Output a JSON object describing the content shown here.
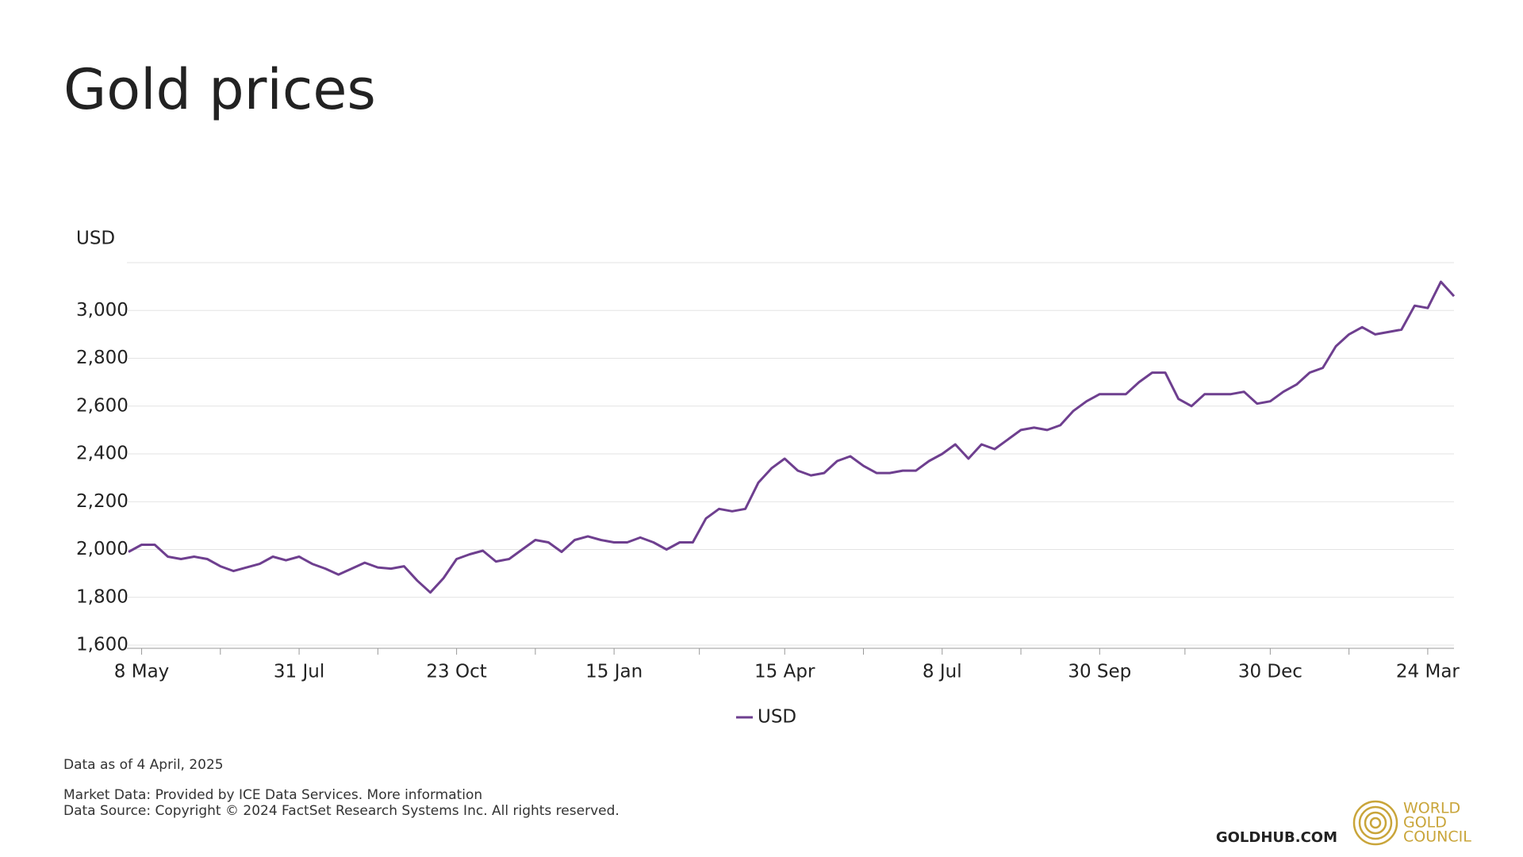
{
  "chart_data": {
    "type": "line",
    "title": "Gold prices",
    "y_label": "USD",
    "categories": [
      null,
      "8 May",
      null,
      null,
      null,
      null,
      null,
      null,
      null,
      null,
      null,
      null,
      null,
      "31 Jul",
      null,
      null,
      null,
      null,
      null,
      null,
      null,
      null,
      null,
      null,
      null,
      "23 Oct",
      null,
      null,
      null,
      null,
      null,
      null,
      null,
      null,
      null,
      null,
      null,
      "15 Jan",
      null,
      null,
      null,
      null,
      null,
      null,
      null,
      null,
      null,
      null,
      null,
      null,
      "15 Apr",
      null,
      null,
      null,
      null,
      null,
      null,
      null,
      null,
      null,
      null,
      null,
      "8 Jul",
      null,
      null,
      null,
      null,
      null,
      null,
      null,
      null,
      null,
      null,
      null,
      "30 Sep",
      null,
      null,
      null,
      null,
      null,
      null,
      null,
      null,
      null,
      null,
      null,
      null,
      "30 Dec",
      null,
      null,
      null,
      null,
      null,
      null,
      null,
      null,
      null,
      null,
      null,
      "24 Mar",
      null,
      null
    ],
    "series": [
      {
        "name": "USD",
        "color": "#6e3f8f",
        "values": [
          1990,
          2020,
          2020,
          1970,
          1960,
          1970,
          1960,
          1930,
          1910,
          1925,
          1940,
          1970,
          1955,
          1970,
          1940,
          1920,
          1895,
          1920,
          1945,
          1925,
          1920,
          1930,
          1870,
          1820,
          1880,
          1960,
          1980,
          1995,
          1950,
          1960,
          2000,
          2040,
          2030,
          1990,
          2040,
          2055,
          2040,
          2030,
          2030,
          2050,
          2030,
          2000,
          2030,
          2030,
          2130,
          2170,
          2160,
          2170,
          2280,
          2340,
          2380,
          2330,
          2310,
          2320,
          2370,
          2390,
          2350,
          2320,
          2320,
          2330,
          2330,
          2370,
          2400,
          2440,
          2380,
          2440,
          2420,
          2460,
          2500,
          2510,
          2500,
          2520,
          2580,
          2620,
          2650,
          2650,
          2650,
          2700,
          2740,
          2740,
          2630,
          2600,
          2650,
          2650,
          2650,
          2660,
          2610,
          2620,
          2660,
          2690,
          2740,
          2760,
          2850,
          2900,
          2930,
          2900,
          2910,
          2920,
          3020,
          3010,
          3120,
          3060
        ]
      }
    ],
    "ylim": [
      1600,
      3200
    ],
    "yticks": [
      {
        "value": 1600,
        "label": "1,600"
      },
      {
        "value": 1800,
        "label": "1,800"
      },
      {
        "value": 2000,
        "label": "2,000"
      },
      {
        "value": 2200,
        "label": "2,200"
      },
      {
        "value": 2400,
        "label": "2,400"
      },
      {
        "value": 2600,
        "label": "2,600"
      },
      {
        "value": 2800,
        "label": "2,800"
      },
      {
        "value": 3000,
        "label": "3,000"
      }
    ],
    "grid": true,
    "legend": "bottom"
  },
  "footer": {
    "as_of": "Data as of 4 April, 2025",
    "market_data": "Market Data: Provided by ICE Data Services. More information",
    "data_source": "Data Source: Copyright © 2024 FactSet Research Systems Inc. All rights reserved.",
    "site": "GOLDHUB.COM",
    "logo": [
      "WORLD",
      "GOLD",
      "COUNCIL"
    ]
  }
}
